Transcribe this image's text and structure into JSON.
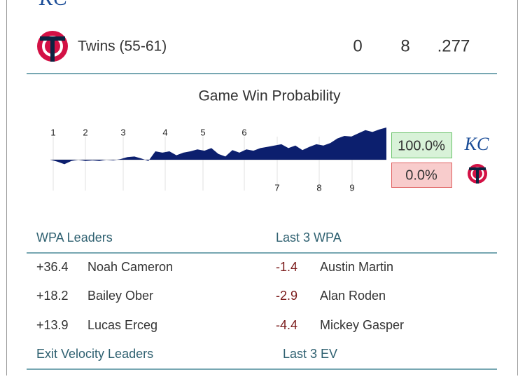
{
  "teams": [
    {
      "logo": "KC"
    },
    {
      "name": "Twins (55-61)",
      "runs": 0,
      "hits": 8,
      "avg": ".277"
    }
  ],
  "win_probability": {
    "title": "Game Win Probability",
    "innings": [
      "1",
      "2",
      "3",
      "4",
      "5",
      "6",
      "7",
      "8",
      "9"
    ],
    "values": [
      50,
      47,
      43,
      48,
      50,
      48,
      49,
      48,
      50,
      49,
      51,
      54,
      55,
      52,
      48,
      63,
      61,
      63,
      57,
      61,
      63,
      66,
      64,
      68,
      59,
      55,
      65,
      61,
      66,
      64,
      68,
      70,
      72,
      74,
      68,
      72,
      65,
      70,
      74,
      72,
      76,
      83,
      87,
      86,
      91,
      96,
      93,
      97,
      100
    ],
    "final": [
      {
        "value": 100,
        "label": "100.0%"
      },
      {
        "value": 0,
        "label": "0.0%"
      }
    ],
    "logo": "KC"
  },
  "wpa": {
    "leaders_title": "WPA Leaders",
    "last_title": "Last 3 WPA",
    "leaders": [
      {
        "wpa": "+36.4",
        "player": "Noah Cameron"
      },
      {
        "wpa": "+18.2",
        "player": "Bailey Ober"
      },
      {
        "wpa": "+13.9",
        "player": "Lucas Erceg"
      }
    ],
    "last": [
      {
        "wpa": "-1.4",
        "player": "Austin Martin"
      },
      {
        "wpa": "-2.9",
        "player": "Alan Roden"
      },
      {
        "wpa": "-4.4",
        "player": "Mickey Gasper"
      }
    ]
  },
  "ev": {
    "leaders_title": "Exit Velocity Leaders",
    "last_title": "Last 3 EV"
  }
}
